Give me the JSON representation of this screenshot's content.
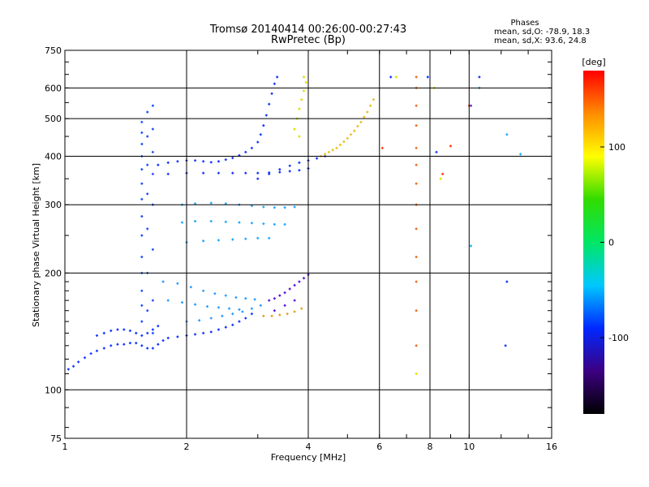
{
  "chart_data": {
    "type": "scatter",
    "title": "Tromsø 20140414 00:26:00-00:27:43",
    "subtitle": "RwPretec (Bp)",
    "xlabel": "Frequency [MHz]",
    "ylabel": "Stationary phase Virtual Height [km]",
    "x_scale": "log",
    "y_scale": "log",
    "xlim": [
      1,
      16
    ],
    "ylim": [
      75,
      750
    ],
    "xticks": [
      1,
      2,
      4,
      6,
      8,
      10,
      16
    ],
    "yticks": [
      75,
      100,
      200,
      300,
      400,
      500,
      600,
      750
    ],
    "grid_x": [
      2,
      4,
      6,
      8,
      10
    ],
    "grid_y": [
      100,
      200,
      300,
      400,
      500,
      600
    ],
    "stats": {
      "heading": "Phases",
      "line_o": "mean, sd,O: -78.9, 18.3",
      "line_x": "mean, sd,X: 93.6, 24.8"
    },
    "colorbar": {
      "label": "[deg]",
      "min": -180,
      "max": 180,
      "ticks": [
        100,
        0,
        -100
      ],
      "colormap": [
        "#000000",
        "#3c0082",
        "#0028ff",
        "#00c8ff",
        "#00e664",
        "#32dc00",
        "#ffff00",
        "#ff8c00",
        "#ff0000"
      ]
    },
    "series": [
      {
        "color": "#1a3aff",
        "phase": -110,
        "points": [
          [
            1.02,
            113
          ],
          [
            1.05,
            115
          ],
          [
            1.08,
            118
          ],
          [
            1.12,
            121
          ],
          [
            1.16,
            124
          ],
          [
            1.2,
            126
          ],
          [
            1.25,
            128
          ],
          [
            1.3,
            130
          ],
          [
            1.35,
            131
          ],
          [
            1.4,
            131
          ],
          [
            1.45,
            132
          ],
          [
            1.5,
            132
          ],
          [
            1.55,
            130
          ],
          [
            1.6,
            128
          ],
          [
            1.65,
            128
          ],
          [
            1.7,
            131
          ],
          [
            1.75,
            134
          ],
          [
            1.8,
            136
          ],
          [
            1.9,
            137
          ],
          [
            2.0,
            138
          ],
          [
            2.1,
            139
          ],
          [
            2.2,
            140
          ],
          [
            2.3,
            141
          ],
          [
            2.4,
            143
          ],
          [
            2.5,
            145
          ],
          [
            2.6,
            147
          ],
          [
            2.7,
            150
          ],
          [
            2.8,
            153
          ],
          [
            2.9,
            157
          ]
        ]
      },
      {
        "color": "#1a3aff",
        "phase": -110,
        "points": [
          [
            1.2,
            138
          ],
          [
            1.25,
            140
          ],
          [
            1.3,
            142
          ],
          [
            1.35,
            143
          ],
          [
            1.4,
            143
          ],
          [
            1.45,
            142
          ],
          [
            1.5,
            140
          ],
          [
            1.55,
            138
          ],
          [
            1.6,
            140
          ],
          [
            1.65,
            143
          ],
          [
            1.7,
            146
          ]
        ]
      },
      {
        "color": "#2050ff",
        "phase": -105,
        "points": [
          [
            1.55,
            150
          ],
          [
            1.55,
            165
          ],
          [
            1.55,
            180
          ],
          [
            1.55,
            200
          ],
          [
            1.55,
            220
          ],
          [
            1.55,
            250
          ],
          [
            1.55,
            280
          ],
          [
            1.55,
            310
          ],
          [
            1.55,
            340
          ],
          [
            1.55,
            370
          ],
          [
            1.55,
            400
          ],
          [
            1.55,
            430
          ],
          [
            1.55,
            460
          ],
          [
            1.55,
            490
          ],
          [
            1.6,
            160
          ],
          [
            1.6,
            200
          ],
          [
            1.6,
            260
          ],
          [
            1.6,
            320
          ],
          [
            1.6,
            380
          ],
          [
            1.6,
            450
          ],
          [
            1.6,
            520
          ],
          [
            1.65,
            140
          ],
          [
            1.65,
            170
          ],
          [
            1.65,
            230
          ],
          [
            1.65,
            300
          ],
          [
            1.65,
            360
          ],
          [
            1.65,
            410
          ],
          [
            1.65,
            470
          ],
          [
            1.65,
            540
          ]
        ]
      },
      {
        "color": "#1a3aff",
        "phase": -110,
        "points": [
          [
            1.7,
            380
          ],
          [
            1.8,
            385
          ],
          [
            1.9,
            388
          ],
          [
            2.0,
            390
          ],
          [
            2.1,
            390
          ],
          [
            2.2,
            388
          ],
          [
            2.3,
            386
          ],
          [
            2.4,
            388
          ],
          [
            2.5,
            392
          ],
          [
            2.6,
            396
          ],
          [
            2.7,
            402
          ],
          [
            2.8,
            410
          ],
          [
            2.9,
            420
          ],
          [
            3.0,
            435
          ],
          [
            3.05,
            455
          ],
          [
            3.1,
            480
          ],
          [
            3.15,
            510
          ],
          [
            3.2,
            545
          ],
          [
            3.25,
            580
          ],
          [
            3.3,
            615
          ],
          [
            3.35,
            640
          ]
        ]
      },
      {
        "color": "#1a3aff",
        "phase": -110,
        "points": [
          [
            1.8,
            360
          ],
          [
            2.0,
            362
          ],
          [
            2.2,
            362
          ],
          [
            2.4,
            362
          ],
          [
            2.6,
            362
          ],
          [
            2.8,
            362
          ],
          [
            3.0,
            362
          ],
          [
            3.2,
            363
          ],
          [
            3.4,
            364
          ],
          [
            3.6,
            366
          ],
          [
            3.8,
            368
          ],
          [
            4.0,
            372
          ]
        ]
      },
      {
        "color": "#1a3aff",
        "phase": -110,
        "points": [
          [
            3.0,
            350
          ],
          [
            3.2,
            360
          ],
          [
            3.4,
            370
          ],
          [
            3.6,
            378
          ],
          [
            3.8,
            385
          ],
          [
            4.0,
            390
          ],
          [
            4.2,
            395
          ],
          [
            4.4,
            400
          ]
        ]
      },
      {
        "color": "#20a8ff",
        "phase": -60,
        "points": [
          [
            1.95,
            300
          ],
          [
            2.1,
            302
          ],
          [
            2.3,
            303
          ],
          [
            2.5,
            302
          ],
          [
            2.7,
            300
          ],
          [
            2.9,
            298
          ],
          [
            3.1,
            296
          ],
          [
            3.3,
            295
          ],
          [
            3.5,
            295
          ],
          [
            3.7,
            296
          ],
          [
            1.95,
            270
          ],
          [
            2.1,
            272
          ],
          [
            2.3,
            272
          ],
          [
            2.5,
            271
          ],
          [
            2.7,
            270
          ],
          [
            2.9,
            269
          ],
          [
            3.1,
            268
          ],
          [
            3.3,
            267
          ],
          [
            3.5,
            267
          ],
          [
            2.0,
            240
          ],
          [
            2.2,
            242
          ],
          [
            2.4,
            243
          ],
          [
            2.6,
            244
          ],
          [
            2.8,
            245
          ],
          [
            3.0,
            246
          ],
          [
            3.2,
            246
          ]
        ]
      },
      {
        "color": "#2a9cff",
        "phase": -70,
        "points": [
          [
            1.75,
            190
          ],
          [
            1.9,
            188
          ],
          [
            2.05,
            184
          ],
          [
            2.2,
            180
          ],
          [
            2.35,
            177
          ],
          [
            2.5,
            175
          ],
          [
            2.65,
            173
          ],
          [
            2.8,
            172
          ],
          [
            2.95,
            171
          ],
          [
            1.8,
            170
          ],
          [
            1.95,
            168
          ],
          [
            2.1,
            166
          ],
          [
            2.25,
            164
          ],
          [
            2.4,
            163
          ],
          [
            2.55,
            162
          ],
          [
            2.7,
            161
          ],
          [
            2.0,
            150
          ],
          [
            2.15,
            151
          ],
          [
            2.3,
            153
          ],
          [
            2.45,
            155
          ],
          [
            2.6,
            157
          ],
          [
            2.75,
            159
          ],
          [
            2.9,
            162
          ],
          [
            3.05,
            165
          ]
        ]
      },
      {
        "color": "#5a1ad8",
        "phase": -130,
        "points": [
          [
            3.2,
            170
          ],
          [
            3.3,
            172
          ],
          [
            3.4,
            175
          ],
          [
            3.5,
            178
          ],
          [
            3.6,
            182
          ],
          [
            3.7,
            186
          ],
          [
            3.8,
            190
          ],
          [
            3.9,
            194
          ],
          [
            4.0,
            198
          ],
          [
            3.3,
            160
          ],
          [
            3.5,
            165
          ],
          [
            3.7,
            170
          ]
        ]
      },
      {
        "color": "#e8a020",
        "phase": 120,
        "points": [
          [
            3.1,
            155
          ],
          [
            3.25,
            155
          ],
          [
            3.4,
            156
          ],
          [
            3.55,
            157
          ],
          [
            3.7,
            159
          ],
          [
            3.85,
            162
          ]
        ]
      },
      {
        "color": "#e0e000",
        "phase": 100,
        "points": [
          [
            3.7,
            470
          ],
          [
            3.75,
            500
          ],
          [
            3.8,
            530
          ],
          [
            3.85,
            560
          ],
          [
            3.9,
            590
          ],
          [
            3.95,
            620
          ],
          [
            3.8,
            450
          ],
          [
            3.9,
            640
          ]
        ]
      },
      {
        "color": "#e8c020",
        "phase": 110,
        "points": [
          [
            4.3,
            400
          ],
          [
            4.4,
            405
          ],
          [
            4.5,
            410
          ],
          [
            4.6,
            415
          ],
          [
            4.7,
            420
          ],
          [
            4.8,
            428
          ],
          [
            4.9,
            436
          ],
          [
            5.0,
            445
          ],
          [
            5.1,
            455
          ],
          [
            5.2,
            465
          ],
          [
            5.3,
            478
          ],
          [
            5.4,
            490
          ],
          [
            5.5,
            505
          ],
          [
            5.6,
            520
          ],
          [
            5.7,
            540
          ],
          [
            5.8,
            560
          ]
        ]
      },
      {
        "color": "#e87020",
        "phase": 150,
        "points": [
          [
            7.4,
            130
          ],
          [
            7.4,
            160
          ],
          [
            7.4,
            190
          ],
          [
            7.4,
            220
          ],
          [
            7.4,
            260
          ],
          [
            7.4,
            300
          ],
          [
            7.4,
            340
          ],
          [
            7.4,
            380
          ],
          [
            7.4,
            420
          ],
          [
            7.4,
            480
          ],
          [
            7.4,
            540
          ],
          [
            7.4,
            600
          ],
          [
            7.4,
            640
          ]
        ]
      },
      {
        "color": "#1a3aff",
        "phase": -110,
        "points": [
          [
            6.4,
            640
          ],
          [
            7.9,
            640
          ],
          [
            8.3,
            410
          ],
          [
            10.1,
            540
          ],
          [
            10.6,
            640
          ],
          [
            12.3,
            130
          ],
          [
            12.4,
            190
          ]
        ]
      },
      {
        "color": "#20a8ff",
        "phase": -60,
        "points": [
          [
            10.1,
            235
          ],
          [
            12.4,
            455
          ],
          [
            13.4,
            405
          ],
          [
            10.6,
            600
          ]
        ]
      },
      {
        "color": "#e0e000",
        "phase": 100,
        "points": [
          [
            6.6,
            640
          ],
          [
            8.2,
            600
          ],
          [
            7.4,
            110
          ],
          [
            8.5,
            350
          ]
        ]
      },
      {
        "color": "#ff3a10",
        "phase": 160,
        "points": [
          [
            6.1,
            420
          ],
          [
            8.6,
            360
          ],
          [
            9.0,
            425
          ],
          [
            10.0,
            540
          ]
        ]
      }
    ]
  }
}
